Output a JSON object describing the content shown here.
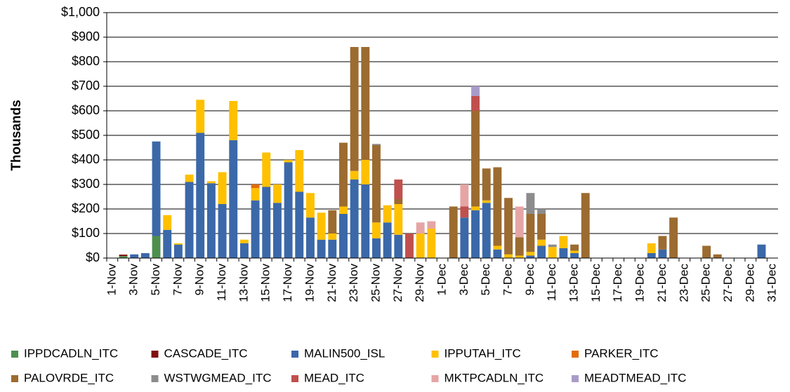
{
  "chart_data": {
    "type": "stacked_bar",
    "y_label": "Thousands",
    "categories": [
      "1-Nov",
      null,
      "3-Nov",
      null,
      "5-Nov",
      null,
      "7-Nov",
      null,
      "9-Nov",
      null,
      "11-Nov",
      null,
      "13-Nov",
      null,
      "15-Nov",
      null,
      "17-Nov",
      null,
      "19-Nov",
      null,
      "21-Nov",
      null,
      "23-Nov",
      null,
      "25-Nov",
      null,
      "27-Nov",
      null,
      "29-Nov",
      null,
      "1-Dec",
      null,
      "3-Dec",
      null,
      "5-Dec",
      null,
      "7-Dec",
      null,
      "9-Dec",
      null,
      "11-Dec",
      null,
      "13-Dec",
      null,
      "15-Dec",
      null,
      "17-Dec",
      null,
      "19-Dec",
      null,
      "21-Dec",
      null,
      "23-Dec",
      null,
      "25-Dec",
      null,
      "27-Dec",
      null,
      "29-Dec",
      null,
      "31-Dec"
    ],
    "series": [
      {
        "name": "IPPDCADLN_ITC",
        "color": "#4e8f4e",
        "values": [
          0,
          8,
          0,
          0,
          90,
          0,
          0,
          0,
          0,
          0,
          0,
          0,
          0,
          0,
          0,
          0,
          0,
          0,
          0,
          0,
          0,
          0,
          0,
          0,
          0,
          0,
          0,
          0,
          0,
          0,
          0,
          0,
          0,
          0,
          0,
          0,
          0,
          0,
          0,
          0,
          0,
          0,
          0,
          0,
          0,
          0,
          0,
          0,
          0,
          0,
          0,
          0,
          0,
          0,
          0,
          0,
          0,
          0,
          0,
          0,
          0
        ]
      },
      {
        "name": "CASCADE_ITC",
        "color": "#7f1010",
        "values": [
          0,
          6,
          0,
          0,
          0,
          0,
          0,
          0,
          0,
          0,
          0,
          0,
          0,
          0,
          0,
          0,
          0,
          0,
          0,
          0,
          0,
          0,
          0,
          0,
          0,
          0,
          0,
          0,
          0,
          0,
          0,
          0,
          0,
          0,
          0,
          0,
          0,
          0,
          0,
          0,
          0,
          0,
          0,
          0,
          0,
          0,
          0,
          0,
          0,
          0,
          0,
          0,
          0,
          0,
          0,
          0,
          0,
          0,
          0,
          0,
          0
        ]
      },
      {
        "name": "MALIN500_ISL",
        "color": "#3b68a8",
        "values": [
          0,
          0,
          15,
          20,
          385,
          115,
          55,
          310,
          510,
          305,
          220,
          480,
          60,
          235,
          290,
          225,
          390,
          270,
          165,
          75,
          75,
          180,
          320,
          300,
          80,
          145,
          95,
          0,
          0,
          0,
          0,
          0,
          165,
          195,
          225,
          35,
          0,
          0,
          10,
          50,
          0,
          40,
          20,
          0,
          0,
          0,
          0,
          0,
          0,
          20,
          35,
          0,
          0,
          0,
          0,
          0,
          0,
          0,
          0,
          55,
          0
        ]
      },
      {
        "name": "IPPUTAH_ITC",
        "color": "#ffc000",
        "values": [
          0,
          0,
          0,
          0,
          0,
          60,
          5,
          30,
          135,
          8,
          130,
          160,
          15,
          50,
          140,
          75,
          10,
          170,
          100,
          110,
          25,
          30,
          35,
          100,
          65,
          70,
          125,
          0,
          100,
          120,
          0,
          0,
          0,
          15,
          10,
          15,
          15,
          10,
          15,
          25,
          45,
          50,
          10,
          0,
          0,
          0,
          0,
          0,
          0,
          40,
          0,
          0,
          0,
          0,
          0,
          0,
          0,
          0,
          0,
          0,
          0
        ]
      },
      {
        "name": "PARKER_ITC",
        "color": "#e36c0a",
        "values": [
          0,
          0,
          0,
          0,
          0,
          0,
          0,
          0,
          0,
          0,
          0,
          0,
          0,
          15,
          0,
          0,
          0,
          0,
          0,
          0,
          0,
          0,
          0,
          0,
          0,
          0,
          0,
          0,
          0,
          0,
          0,
          0,
          0,
          0,
          0,
          0,
          0,
          0,
          0,
          0,
          0,
          0,
          0,
          0,
          0,
          0,
          0,
          0,
          0,
          0,
          0,
          0,
          0,
          0,
          0,
          0,
          0,
          0,
          0,
          0,
          0
        ]
      },
      {
        "name": "PALOVRDE_ITC",
        "color": "#9c6b30",
        "values": [
          0,
          0,
          0,
          0,
          0,
          0,
          0,
          0,
          0,
          0,
          0,
          0,
          0,
          0,
          0,
          0,
          0,
          0,
          0,
          0,
          95,
          260,
          505,
          460,
          315,
          0,
          20,
          0,
          0,
          0,
          0,
          210,
          0,
          390,
          130,
          320,
          230,
          75,
          155,
          105,
          0,
          0,
          25,
          265,
          0,
          0,
          0,
          0,
          0,
          0,
          55,
          165,
          0,
          0,
          50,
          15,
          0,
          0,
          0,
          0,
          0
        ]
      },
      {
        "name": "WSTWGMEAD_ITC",
        "color": "#8c8c8c",
        "values": [
          0,
          0,
          0,
          0,
          0,
          0,
          0,
          0,
          0,
          0,
          0,
          0,
          0,
          0,
          0,
          0,
          0,
          0,
          0,
          0,
          0,
          0,
          0,
          0,
          5,
          0,
          0,
          0,
          0,
          0,
          0,
          0,
          0,
          0,
          0,
          0,
          0,
          0,
          85,
          20,
          10,
          0,
          0,
          0,
          0,
          0,
          0,
          0,
          0,
          0,
          0,
          0,
          0,
          0,
          0,
          0,
          0,
          0,
          0,
          0,
          0
        ]
      },
      {
        "name": "MEAD_ITC",
        "color": "#c0504d",
        "values": [
          0,
          0,
          0,
          0,
          0,
          0,
          0,
          0,
          0,
          0,
          0,
          0,
          0,
          0,
          0,
          0,
          0,
          0,
          0,
          0,
          0,
          0,
          0,
          0,
          0,
          0,
          80,
          100,
          0,
          0,
          0,
          0,
          45,
          60,
          0,
          0,
          0,
          0,
          0,
          0,
          0,
          0,
          0,
          0,
          0,
          0,
          0,
          0,
          0,
          0,
          0,
          0,
          0,
          0,
          0,
          0,
          0,
          0,
          0,
          0,
          0
        ]
      },
      {
        "name": "MKTPCADLN_ITC",
        "color": "#e6a5a5",
        "values": [
          0,
          0,
          0,
          0,
          0,
          0,
          0,
          0,
          0,
          0,
          0,
          0,
          0,
          0,
          0,
          0,
          0,
          0,
          0,
          0,
          0,
          0,
          0,
          0,
          0,
          0,
          0,
          0,
          45,
          30,
          0,
          0,
          90,
          0,
          0,
          0,
          0,
          125,
          0,
          0,
          0,
          0,
          0,
          0,
          0,
          0,
          0,
          0,
          0,
          0,
          0,
          0,
          0,
          0,
          0,
          0,
          0,
          0,
          0,
          0,
          0
        ]
      },
      {
        "name": "MEADTMEAD_ITC",
        "color": "#a99bc8",
        "values": [
          0,
          0,
          0,
          0,
          0,
          0,
          0,
          0,
          0,
          0,
          0,
          0,
          0,
          0,
          0,
          0,
          0,
          0,
          0,
          0,
          0,
          0,
          0,
          0,
          0,
          0,
          0,
          0,
          0,
          0,
          0,
          0,
          0,
          40,
          0,
          0,
          0,
          0,
          0,
          0,
          0,
          0,
          0,
          0,
          0,
          0,
          0,
          0,
          0,
          0,
          0,
          0,
          0,
          0,
          0,
          0,
          0,
          0,
          0,
          0,
          0
        ]
      }
    ],
    "ylim": [
      0,
      1000
    ],
    "yticks": [
      {
        "value": 0,
        "label": "$0"
      },
      {
        "value": 100,
        "label": "$100"
      },
      {
        "value": 200,
        "label": "$200"
      },
      {
        "value": 300,
        "label": "$300"
      },
      {
        "value": 400,
        "label": "$400"
      },
      {
        "value": 500,
        "label": "$500"
      },
      {
        "value": 600,
        "label": "$600"
      },
      {
        "value": 700,
        "label": "$700"
      },
      {
        "value": 800,
        "label": "$800"
      },
      {
        "value": 900,
        "label": "$900"
      },
      {
        "value": 1000,
        "label": "$1,000"
      }
    ],
    "grid": true
  }
}
